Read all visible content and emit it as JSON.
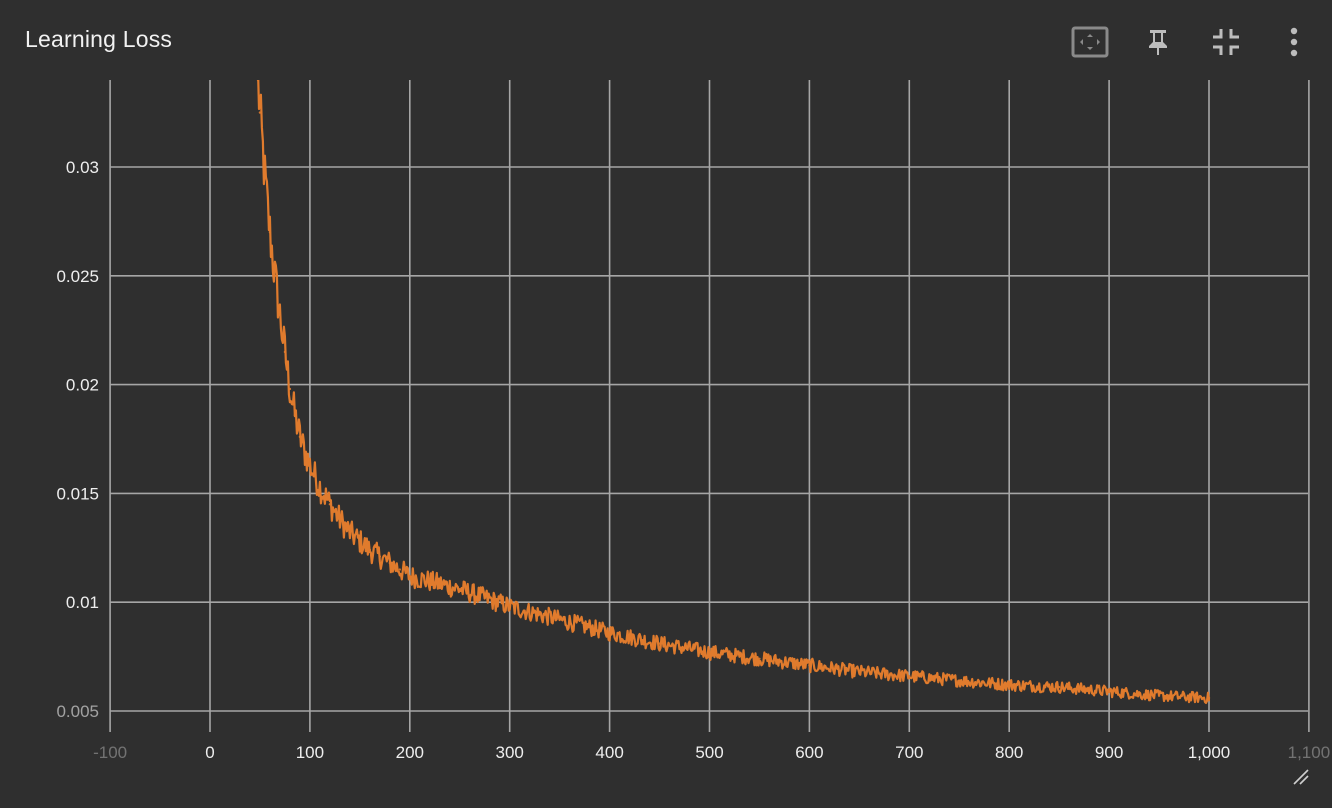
{
  "card": {
    "title": "Learning Loss"
  },
  "toolbar": {
    "buttons": [
      {
        "name": "fit-to-data-button",
        "icon": "fit-screen-icon"
      },
      {
        "name": "pin-button",
        "icon": "pin-icon"
      },
      {
        "name": "exit-fullscreen-button",
        "icon": "collapse-icon"
      },
      {
        "name": "more-options-button",
        "icon": "more-vert-icon"
      }
    ]
  },
  "colors": {
    "background": "#2f2f2f",
    "grid": "#a6a6a6",
    "series": "#e07b2d",
    "text": "#eeeeee"
  },
  "chart_data": {
    "type": "line",
    "title": "Learning Loss",
    "xlabel": "",
    "ylabel": "",
    "xlim": [
      -100,
      1100
    ],
    "ylim": [
      0.0045,
      0.0339
    ],
    "grid": true,
    "x_ticks": [
      -100,
      0,
      100,
      200,
      300,
      400,
      500,
      600,
      700,
      800,
      900,
      1000,
      1100
    ],
    "x_tick_labels": [
      "-100",
      "0",
      "100",
      "200",
      "300",
      "400",
      "500",
      "600",
      "700",
      "800",
      "900",
      "1,000",
      "1,100"
    ],
    "y_ticks": [
      0.005,
      0.01,
      0.015,
      0.02,
      0.025,
      0.03
    ],
    "y_tick_labels": [
      "0.005",
      "0.01",
      "0.015",
      "0.02",
      "0.025",
      "0.03"
    ],
    "series": [
      {
        "x": [
          48,
          50,
          55,
          60,
          65,
          70,
          75,
          80,
          85,
          90,
          95,
          100,
          110,
          120,
          130,
          140,
          150,
          160,
          170,
          180,
          190,
          200,
          225,
          250,
          275,
          300,
          350,
          400,
          450,
          500,
          550,
          600,
          650,
          700,
          750,
          800,
          850,
          900,
          950,
          1000
        ],
        "y": [
          0.034,
          0.0325,
          0.0295,
          0.027,
          0.025,
          0.0232,
          0.0215,
          0.0198,
          0.0186,
          0.0176,
          0.0169,
          0.0163,
          0.0153,
          0.0145,
          0.0138,
          0.0132,
          0.0128,
          0.0124,
          0.0121,
          0.0118,
          0.0115,
          0.0112,
          0.0109,
          0.0106,
          0.0102,
          0.0098,
          0.0092,
          0.0086,
          0.0081,
          0.0077,
          0.0074,
          0.0071,
          0.0068,
          0.0066,
          0.0064,
          0.0062,
          0.0061,
          0.0059,
          0.0057,
          0.0056
        ]
      }
    ]
  }
}
